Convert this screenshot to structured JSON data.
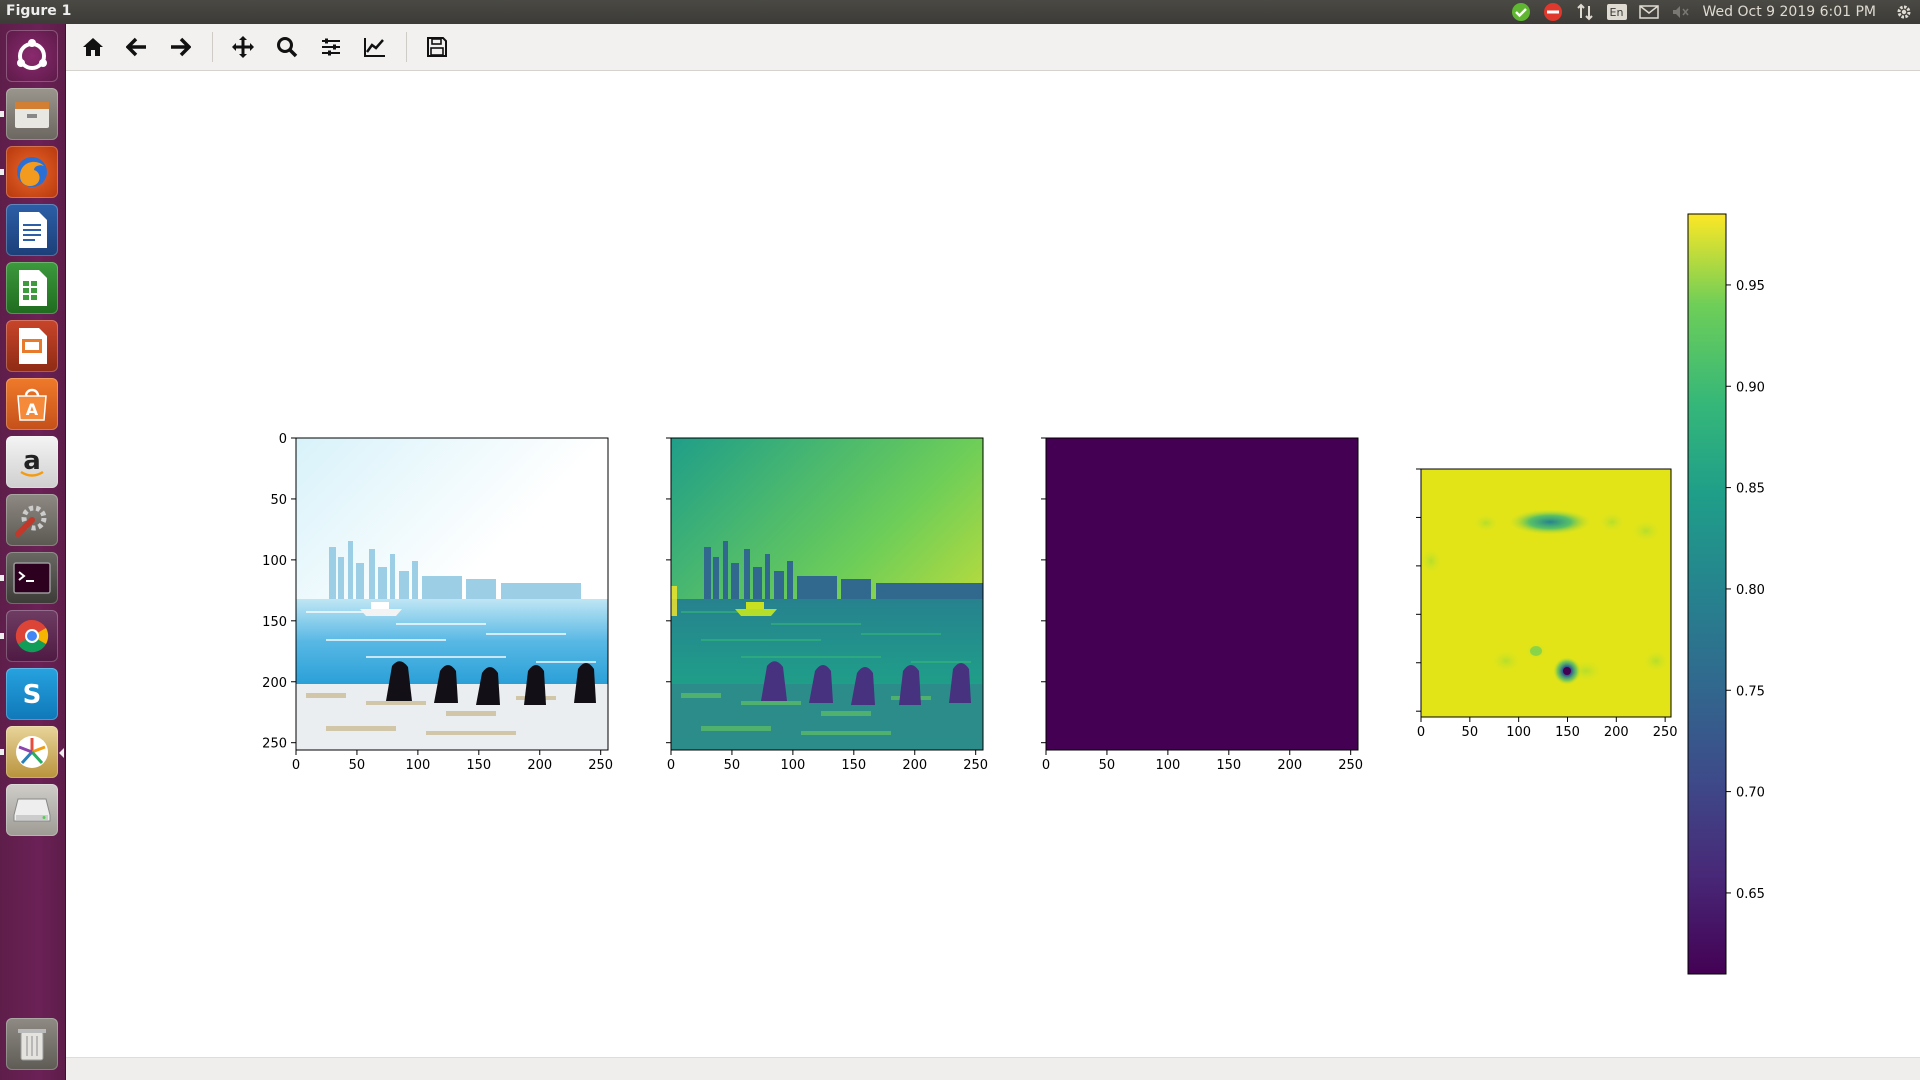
{
  "window": {
    "title": "Figure 1"
  },
  "panel": {
    "clock": "Wed Oct  9 2019  6:01 PM",
    "keyboard_layout": "En"
  },
  "launcher": {
    "items": [
      "ubuntu-dash",
      "files",
      "firefox",
      "libreoffice-writer",
      "libreoffice-calc",
      "libreoffice-impress",
      "ubuntu-software",
      "amazon",
      "system-settings",
      "terminal",
      "chrome",
      "skype",
      "pinwheel-app",
      "disk",
      "trash"
    ]
  },
  "toolbar": {
    "buttons": [
      "home-icon",
      "back-icon",
      "forward-icon",
      "pan-icon",
      "zoom-icon",
      "subplots-icon",
      "customize-icon",
      "save-icon"
    ]
  },
  "chart_data": [
    {
      "type": "image",
      "description_key": "panel-1",
      "x_ticks": [
        "0",
        "50",
        "100",
        "150",
        "200",
        "250"
      ],
      "y_ticks": [
        "0",
        "50",
        "100",
        "150",
        "200",
        "250"
      ],
      "xlim": [
        0,
        256
      ],
      "ylim": [
        256,
        0
      ]
    },
    {
      "type": "image",
      "description_key": "panel-2",
      "colormap": "viridis",
      "x_ticks": [
        "0",
        "50",
        "100",
        "150",
        "200",
        "250"
      ],
      "xlim": [
        0,
        256
      ],
      "ylim": [
        256,
        0
      ]
    },
    {
      "type": "image",
      "description_key": "panel-3",
      "colormap": "viridis",
      "x_ticks": [
        "0",
        "50",
        "100",
        "150",
        "200",
        "250"
      ],
      "xlim": [
        0,
        256
      ],
      "ylim": [
        256,
        0
      ]
    },
    {
      "type": "heatmap",
      "description_key": "panel-4",
      "colormap": "viridis",
      "x_ticks": [
        "0",
        "50",
        "100",
        "150",
        "200",
        "250"
      ],
      "xlim": [
        0,
        256
      ],
      "ylim": [
        256,
        0
      ],
      "hotspots": [
        {
          "x": 120,
          "y": 55,
          "value": 0.78
        },
        {
          "x": 150,
          "y": 200,
          "value": 0.61
        }
      ],
      "background_value": 0.97
    },
    {
      "type": "colorbar",
      "colormap": "viridis",
      "range": [
        0.61,
        0.985
      ],
      "ticks": [
        "0.95",
        "0.90",
        "0.85",
        "0.80",
        "0.75",
        "0.70",
        "0.65"
      ],
      "tick_values": [
        0.95,
        0.9,
        0.85,
        0.8,
        0.75,
        0.7,
        0.65
      ]
    }
  ]
}
